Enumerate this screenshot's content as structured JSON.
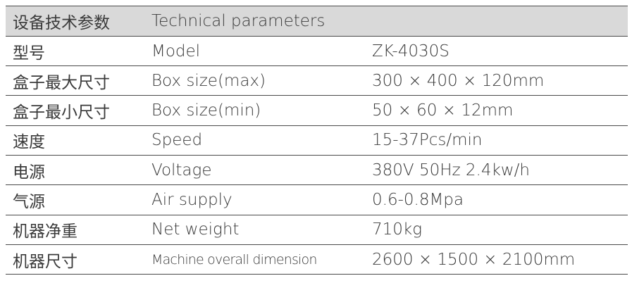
{
  "header": {
    "zh": "设备技术参数",
    "en": "Technical parameters"
  },
  "rows": [
    [
      "型号",
      "Model",
      "ZK-4030S"
    ],
    [
      "盒子最大尺寸",
      "Box size(max)",
      "300 × 400 × 120mm"
    ],
    [
      "盒子最小尺寸",
      "Box size(min)",
      "50 × 60 × 12mm"
    ],
    [
      "速度",
      "Speed",
      "15-37Pcs/min"
    ],
    [
      "电源",
      "Voltage",
      "380V  50Hz   2.4kw/h"
    ],
    [
      "气源",
      "Air supply",
      "0.6-0.8Mpa"
    ],
    [
      "机器净重",
      "Net weight",
      "710kg"
    ],
    [
      "机器尺寸",
      "Machine overall dimension",
      "2600 × 1500 × 2100mm"
    ]
  ]
}
